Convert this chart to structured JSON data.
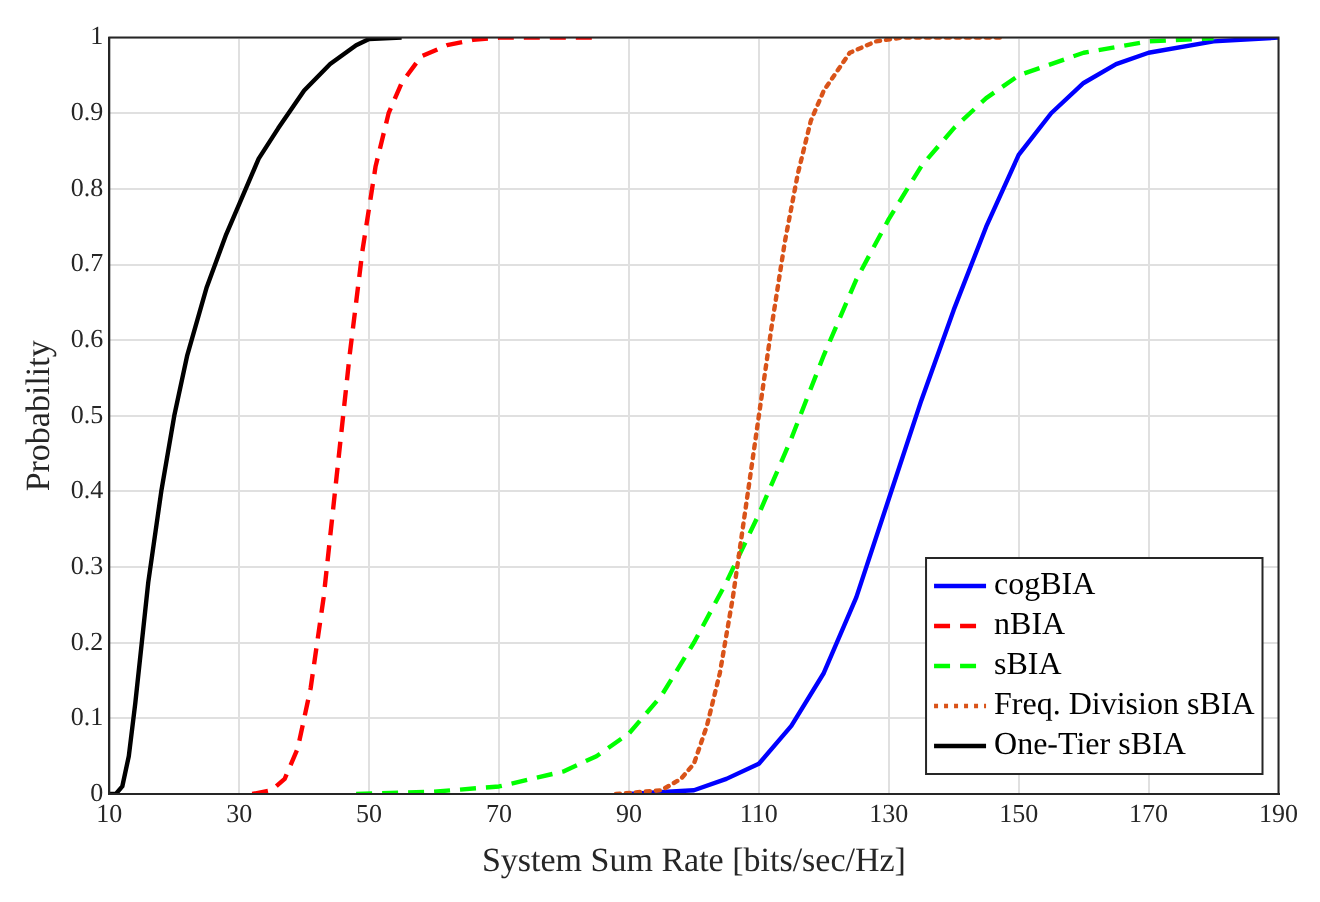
{
  "chart_data": {
    "type": "line",
    "xlabel": "System Sum Rate [bits/sec/Hz]",
    "ylabel": "Probability",
    "xlim": [
      10,
      190
    ],
    "xticks": [
      10,
      30,
      50,
      70,
      90,
      110,
      130,
      150,
      170,
      190
    ],
    "ylim": [
      0,
      1
    ],
    "yticks": [
      0,
      0.1,
      0.2,
      0.3,
      0.4,
      0.5,
      0.6,
      0.7,
      0.8,
      0.9,
      1
    ],
    "grid": true,
    "legend": "bottom right",
    "marker": "none",
    "series": [
      {
        "name": "cogBIA",
        "color": "#0000ff",
        "line_style": "solid",
        "x": [
          90,
          100,
          105,
          110,
          115,
          120,
          125,
          130,
          135,
          140,
          145,
          150,
          155,
          160,
          165,
          170,
          180,
          190
        ],
        "values": [
          0,
          0.005,
          0.02,
          0.04,
          0.09,
          0.16,
          0.26,
          0.39,
          0.52,
          0.64,
          0.75,
          0.845,
          0.9,
          0.94,
          0.965,
          0.98,
          0.995,
          1
        ]
      },
      {
        "name": "nBIA",
        "color": "#ff0000",
        "line_style": "dashed",
        "x": [
          32,
          35,
          37,
          39,
          41,
          43,
          45,
          47,
          49,
          51,
          53,
          55,
          58,
          62,
          66,
          70,
          85
        ],
        "values": [
          0,
          0.005,
          0.02,
          0.06,
          0.14,
          0.26,
          0.42,
          0.58,
          0.72,
          0.83,
          0.9,
          0.94,
          0.975,
          0.99,
          0.997,
          1,
          1
        ]
      },
      {
        "name": "sBIA",
        "color": "#00ff00",
        "line_style": "dashed",
        "x": [
          48,
          60,
          70,
          80,
          85,
          90,
          95,
          100,
          105,
          110,
          115,
          120,
          125,
          130,
          135,
          140,
          145,
          150,
          160,
          170,
          180
        ],
        "values": [
          0,
          0.003,
          0.01,
          0.03,
          0.05,
          0.08,
          0.13,
          0.2,
          0.28,
          0.37,
          0.47,
          0.58,
          0.68,
          0.76,
          0.83,
          0.88,
          0.92,
          0.95,
          0.98,
          0.995,
          0.999
        ]
      },
      {
        "name": "Freq. Division sBIA",
        "color": "#d95319",
        "line_style": "dotted",
        "x": [
          88,
          95,
          98,
          100,
          102,
          104,
          106,
          108,
          110,
          112,
          114,
          116,
          118,
          120,
          124,
          128,
          132,
          148
        ],
        "values": [
          0,
          0.005,
          0.02,
          0.04,
          0.09,
          0.16,
          0.26,
          0.38,
          0.5,
          0.62,
          0.73,
          0.82,
          0.89,
          0.93,
          0.98,
          0.995,
          1,
          1
        ]
      },
      {
        "name": "One-Tier sBIA",
        "color": "#000000",
        "line_style": "solid",
        "x": [
          10,
          11,
          12,
          13,
          14,
          15,
          16,
          18,
          20,
          22,
          25,
          28,
          30,
          33,
          36,
          40,
          44,
          48,
          50,
          55
        ],
        "values": [
          0,
          0,
          0.01,
          0.05,
          0.12,
          0.2,
          0.28,
          0.4,
          0.5,
          0.58,
          0.67,
          0.74,
          0.78,
          0.84,
          0.88,
          0.93,
          0.965,
          0.99,
          0.998,
          1
        ]
      }
    ]
  }
}
